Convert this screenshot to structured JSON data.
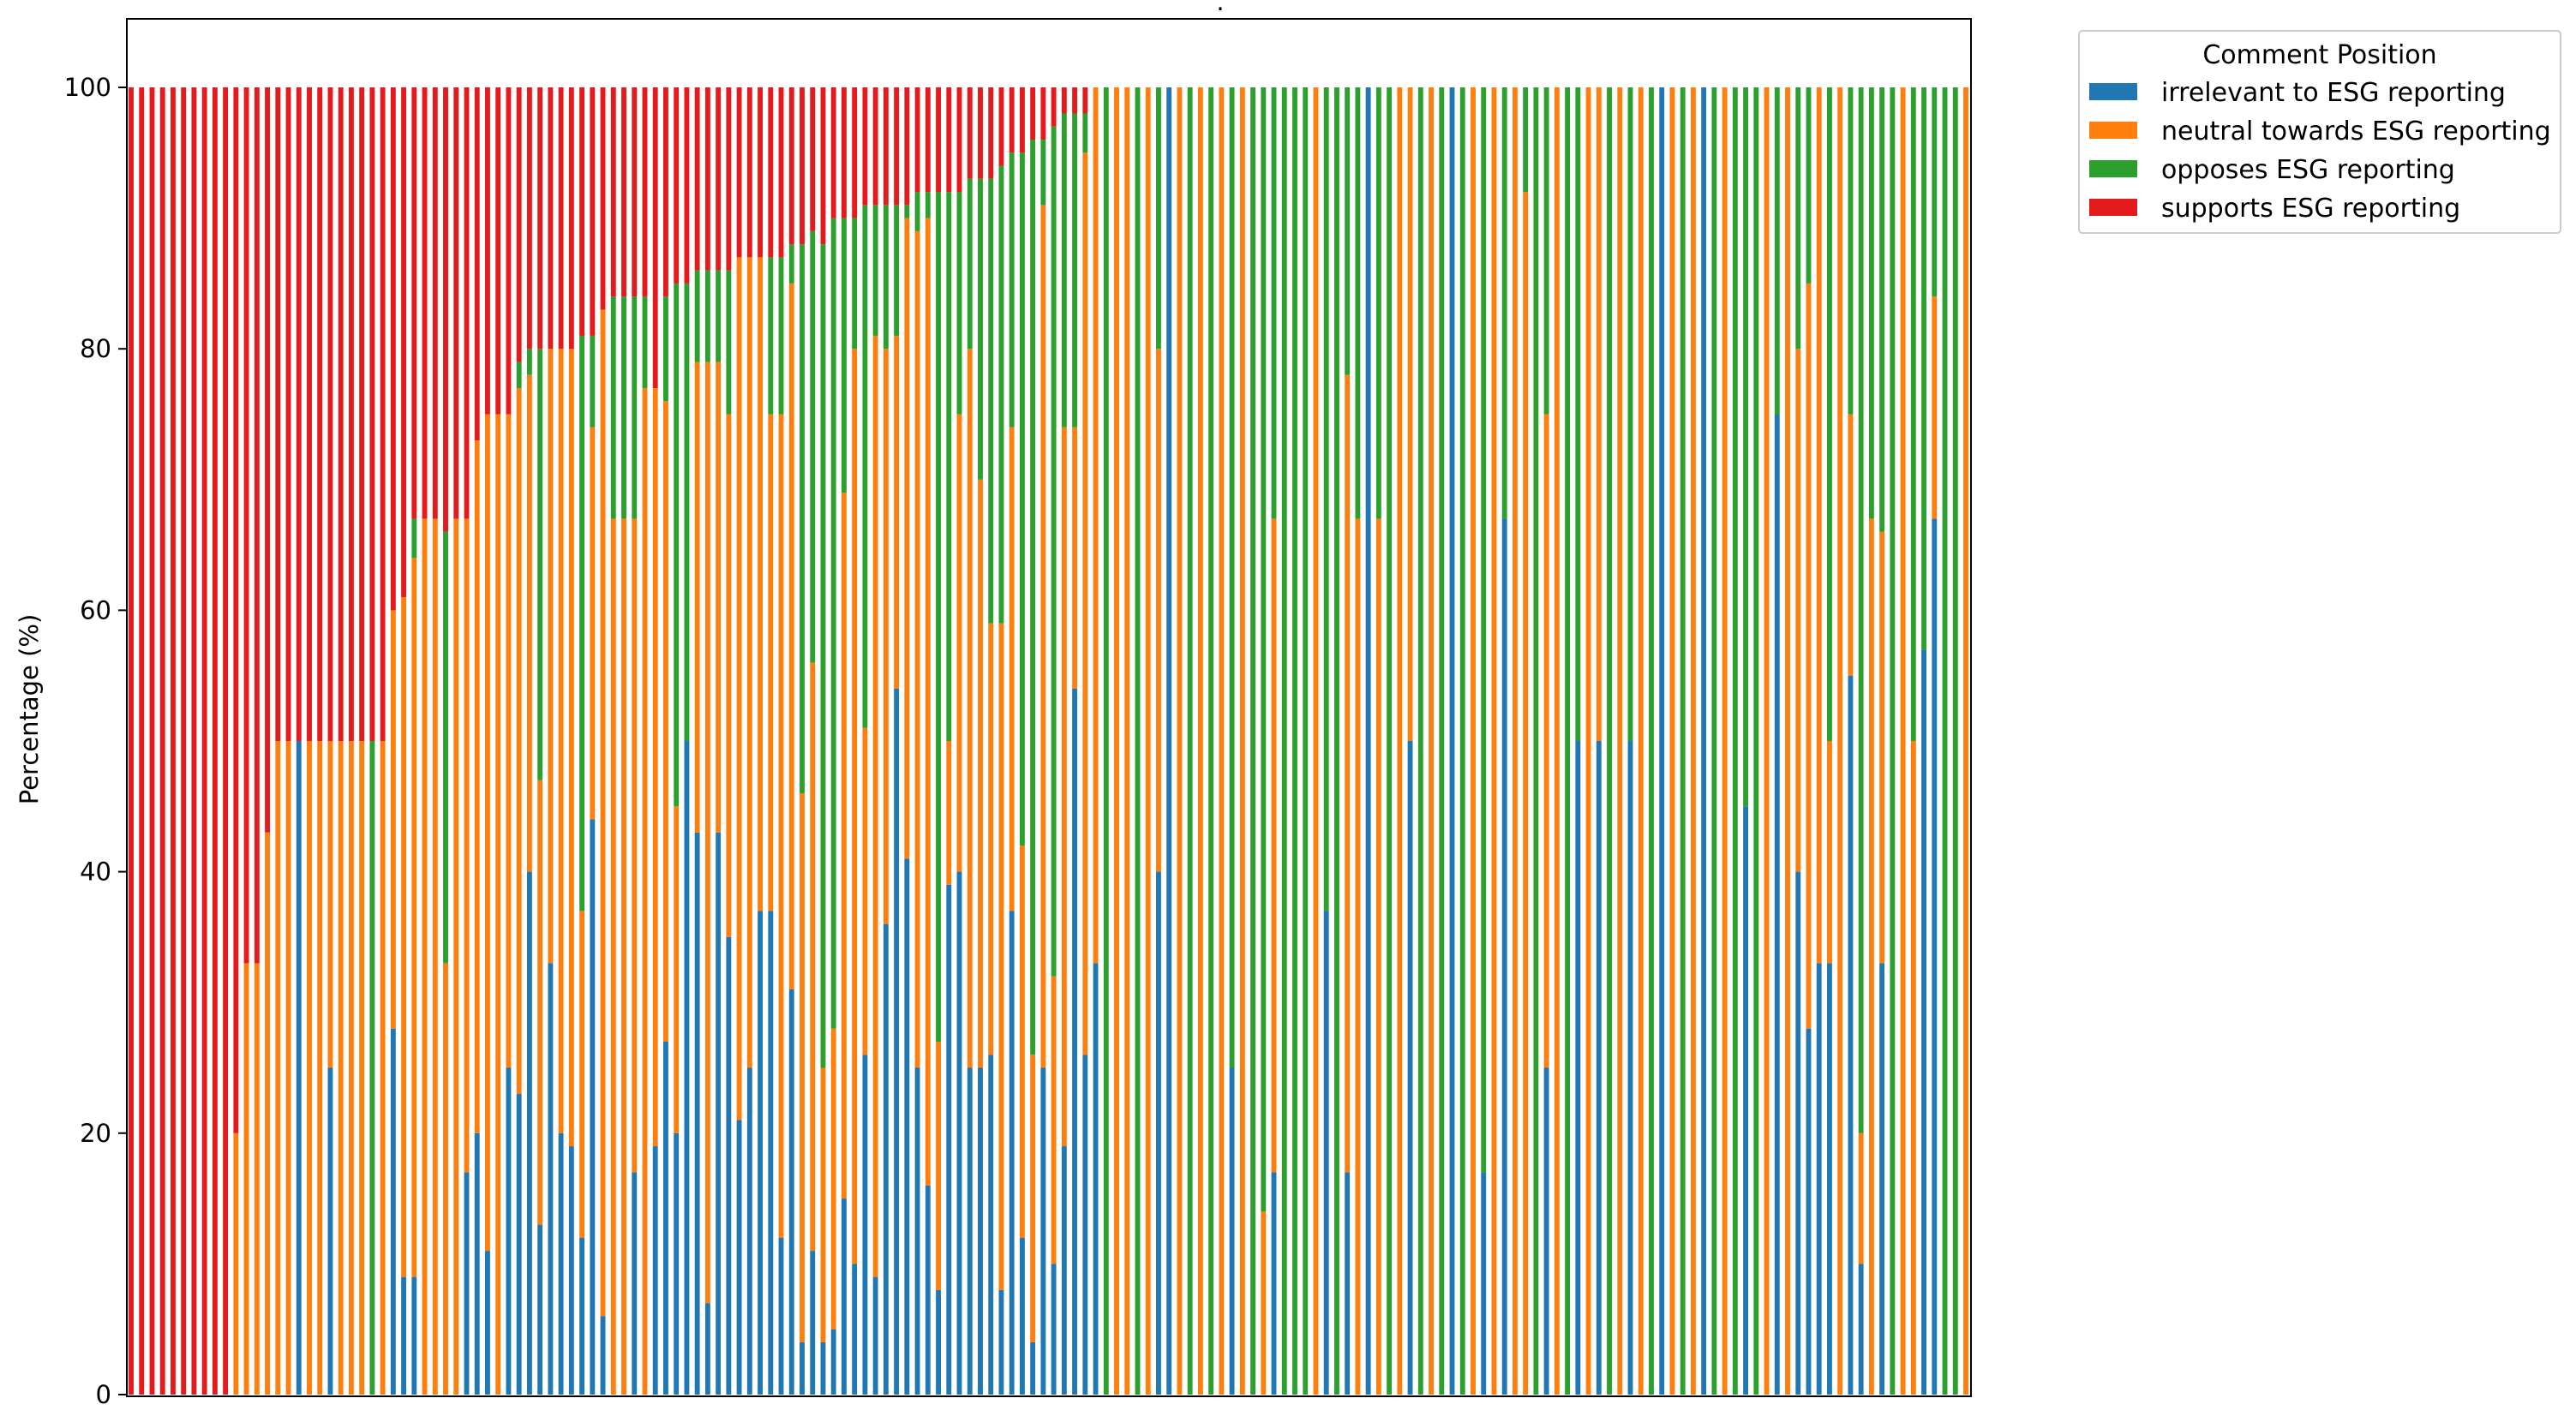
{
  "chart_data": {
    "type": "bar",
    "stacked": true,
    "title": ".",
    "xlabel": "",
    "ylabel": "Percentage (%)",
    "ylim": [
      0,
      100
    ],
    "yticks": [
      0,
      20,
      40,
      60,
      80,
      100
    ],
    "grid": false,
    "legend": {
      "title": "Comment Position",
      "placement": "outside-top-right",
      "entries": [
        "irrelevant to ESG reporting",
        "neutral towards ESG reporting",
        "opposes ESG reporting",
        "supports ESG reporting"
      ]
    },
    "colors": {
      "irrelevant to ESG reporting": "#1f77b4",
      "neutral towards ESG reporting": "#ff7f0e",
      "opposes ESG reporting": "#2ca02c",
      "supports ESG reporting": "#e41a1c"
    },
    "bars": [
      [
        0,
        0,
        0,
        100
      ],
      [
        0,
        0,
        0,
        100
      ],
      [
        0,
        0,
        0,
        100
      ],
      [
        0,
        0,
        0,
        100
      ],
      [
        0,
        0,
        0,
        100
      ],
      [
        0,
        0,
        0,
        100
      ],
      [
        0,
        0,
        0,
        100
      ],
      [
        0,
        0,
        0,
        100
      ],
      [
        0,
        0,
        0,
        100
      ],
      [
        0,
        0,
        0,
        100
      ],
      [
        0,
        20,
        0,
        80
      ],
      [
        0,
        33,
        0,
        67
      ],
      [
        0,
        33,
        0,
        67
      ],
      [
        0,
        43,
        0,
        57
      ],
      [
        0,
        50,
        0,
        50
      ],
      [
        0,
        50,
        0,
        50
      ],
      [
        50,
        0,
        0,
        50
      ],
      [
        0,
        50,
        0,
        50
      ],
      [
        0,
        50,
        0,
        50
      ],
      [
        25,
        25,
        0,
        50
      ],
      [
        0,
        50,
        0,
        50
      ],
      [
        0,
        50,
        0,
        50
      ],
      [
        0,
        50,
        0,
        50
      ],
      [
        0,
        0,
        50,
        50
      ],
      [
        0,
        50,
        0,
        50
      ],
      [
        28,
        32,
        0,
        40
      ],
      [
        9,
        52,
        0,
        39
      ],
      [
        9,
        55,
        3,
        33
      ],
      [
        0,
        67,
        0,
        33
      ],
      [
        0,
        67,
        0,
        33
      ],
      [
        0,
        33,
        33,
        34
      ],
      [
        0,
        67,
        0,
        33
      ],
      [
        17,
        50,
        0,
        33
      ],
      [
        20,
        53,
        0,
        27
      ],
      [
        11,
        64,
        0,
        25
      ],
      [
        0,
        75,
        0,
        25
      ],
      [
        25,
        50,
        0,
        25
      ],
      [
        23,
        54,
        2,
        21
      ],
      [
        40,
        38,
        2,
        20
      ],
      [
        13,
        34,
        33,
        20
      ],
      [
        33,
        47,
        0,
        20
      ],
      [
        20,
        60,
        0,
        20
      ],
      [
        19,
        61,
        0,
        20
      ],
      [
        12,
        25,
        44,
        19
      ],
      [
        44,
        30,
        7,
        19
      ],
      [
        6,
        77,
        0,
        17
      ],
      [
        0,
        67,
        17,
        16
      ],
      [
        0,
        67,
        17,
        16
      ],
      [
        17,
        50,
        17,
        16
      ],
      [
        0,
        77,
        7,
        16
      ],
      [
        19,
        58,
        0,
        23
      ],
      [
        27,
        49,
        8,
        16
      ],
      [
        20,
        25,
        40,
        15
      ],
      [
        50,
        0,
        35,
        15
      ],
      [
        43,
        36,
        7,
        14
      ],
      [
        7,
        72,
        7,
        14
      ],
      [
        43,
        36,
        7,
        14
      ],
      [
        35,
        40,
        11,
        14
      ],
      [
        21,
        66,
        0,
        13
      ],
      [
        25,
        62,
        0,
        13
      ],
      [
        37,
        50,
        0,
        13
      ],
      [
        37,
        38,
        12,
        13
      ],
      [
        12,
        63,
        12,
        13
      ],
      [
        31,
        54,
        3,
        12
      ],
      [
        4,
        42,
        42,
        12
      ],
      [
        11,
        45,
        33,
        11
      ],
      [
        4,
        21,
        63,
        12
      ],
      [
        5,
        23,
        62,
        10
      ],
      [
        15,
        54,
        21,
        10
      ],
      [
        10,
        70,
        10,
        10
      ],
      [
        26,
        25,
        40,
        9
      ],
      [
        9,
        72,
        10,
        9
      ],
      [
        36,
        44,
        11,
        9
      ],
      [
        54,
        27,
        10,
        9
      ],
      [
        41,
        49,
        1,
        9
      ],
      [
        25,
        64,
        3,
        8
      ],
      [
        16,
        74,
        2,
        8
      ],
      [
        8,
        19,
        65,
        8
      ],
      [
        39,
        11,
        42,
        8
      ],
      [
        40,
        35,
        17,
        8
      ],
      [
        25,
        55,
        13,
        7
      ],
      [
        25,
        45,
        23,
        7
      ],
      [
        26,
        33,
        34,
        7
      ],
      [
        8,
        51,
        35,
        6
      ],
      [
        37,
        37,
        21,
        5
      ],
      [
        12,
        30,
        53,
        5
      ],
      [
        4,
        22,
        70,
        4
      ],
      [
        25,
        66,
        5,
        4
      ],
      [
        10,
        22,
        65,
        3
      ],
      [
        19,
        55,
        24,
        2
      ],
      [
        54,
        20,
        24,
        2
      ],
      [
        26,
        69,
        3,
        2
      ],
      [
        33,
        67,
        0,
        0
      ],
      [
        0,
        0,
        100,
        0
      ],
      [
        0,
        100,
        0,
        0
      ],
      [
        0,
        100,
        0,
        0
      ],
      [
        0,
        0,
        100,
        0
      ],
      [
        0,
        100,
        0,
        0
      ],
      [
        40,
        40,
        20,
        0
      ],
      [
        100,
        0,
        0,
        0
      ],
      [
        0,
        100,
        0,
        0
      ],
      [
        0,
        0,
        100,
        0
      ],
      [
        0,
        100,
        0,
        0
      ],
      [
        0,
        0,
        100,
        0
      ],
      [
        0,
        100,
        0,
        0
      ],
      [
        25,
        0,
        75,
        0
      ],
      [
        0,
        100,
        0,
        0
      ],
      [
        0,
        0,
        100,
        0
      ],
      [
        0,
        14,
        86,
        0
      ],
      [
        17,
        50,
        33,
        0
      ],
      [
        0,
        0,
        100,
        0
      ],
      [
        0,
        0,
        100,
        0
      ],
      [
        0,
        0,
        100,
        0
      ],
      [
        0,
        100,
        0,
        0
      ],
      [
        37,
        0,
        63,
        0
      ],
      [
        0,
        0,
        100,
        0
      ],
      [
        17,
        61,
        22,
        0
      ],
      [
        0,
        67,
        33,
        0
      ],
      [
        100,
        0,
        0,
        0
      ],
      [
        0,
        67,
        33,
        0
      ],
      [
        0,
        0,
        100,
        0
      ],
      [
        0,
        100,
        0,
        0
      ],
      [
        50,
        50,
        0,
        0
      ],
      [
        0,
        0,
        100,
        0
      ],
      [
        0,
        100,
        0,
        0
      ],
      [
        0,
        0,
        100,
        0
      ],
      [
        100,
        0,
        0,
        0
      ],
      [
        0,
        0,
        100,
        0
      ],
      [
        0,
        100,
        0,
        0
      ],
      [
        17,
        0,
        83,
        0
      ],
      [
        0,
        100,
        0,
        0
      ],
      [
        67,
        0,
        33,
        0
      ],
      [
        0,
        100,
        0,
        0
      ],
      [
        0,
        92,
        8,
        0
      ],
      [
        0,
        0,
        100,
        0
      ],
      [
        25,
        50,
        25,
        0
      ],
      [
        0,
        100,
        0,
        0
      ],
      [
        0,
        0,
        100,
        0
      ],
      [
        50,
        0,
        50,
        0
      ],
      [
        0,
        100,
        0,
        0
      ],
      [
        50,
        50,
        0,
        0
      ],
      [
        0,
        0,
        100,
        0
      ],
      [
        0,
        100,
        0,
        0
      ],
      [
        50,
        0,
        50,
        0
      ],
      [
        0,
        100,
        0,
        0
      ],
      [
        0,
        0,
        100,
        0
      ],
      [
        100,
        0,
        0,
        0
      ],
      [
        0,
        100,
        0,
        0
      ],
      [
        0,
        0,
        100,
        0
      ],
      [
        0,
        100,
        0,
        0
      ],
      [
        100,
        0,
        0,
        0
      ],
      [
        0,
        0,
        100,
        0
      ],
      [
        0,
        100,
        0,
        0
      ],
      [
        0,
        0,
        100,
        0
      ],
      [
        45,
        0,
        55,
        0
      ],
      [
        0,
        0,
        100,
        0
      ],
      [
        0,
        100,
        0,
        0
      ],
      [
        75,
        0,
        25,
        0
      ],
      [
        0,
        100,
        0,
        0
      ],
      [
        40,
        40,
        20,
        0
      ],
      [
        28,
        57,
        15,
        0
      ],
      [
        33,
        67,
        0,
        0
      ],
      [
        33,
        17,
        50,
        0
      ],
      [
        0,
        100,
        0,
        0
      ],
      [
        55,
        20,
        25,
        0
      ],
      [
        10,
        10,
        80,
        0
      ],
      [
        0,
        67,
        33,
        0
      ],
      [
        33,
        33,
        34,
        0
      ],
      [
        0,
        0,
        100,
        0
      ],
      [
        0,
        100,
        0,
        0
      ],
      [
        0,
        50,
        50,
        0
      ],
      [
        57,
        0,
        43,
        0
      ],
      [
        67,
        17,
        16,
        0
      ],
      [
        0,
        0,
        100,
        0
      ],
      [
        0,
        0,
        100,
        0
      ],
      [
        0,
        100,
        0,
        0
      ]
    ]
  }
}
